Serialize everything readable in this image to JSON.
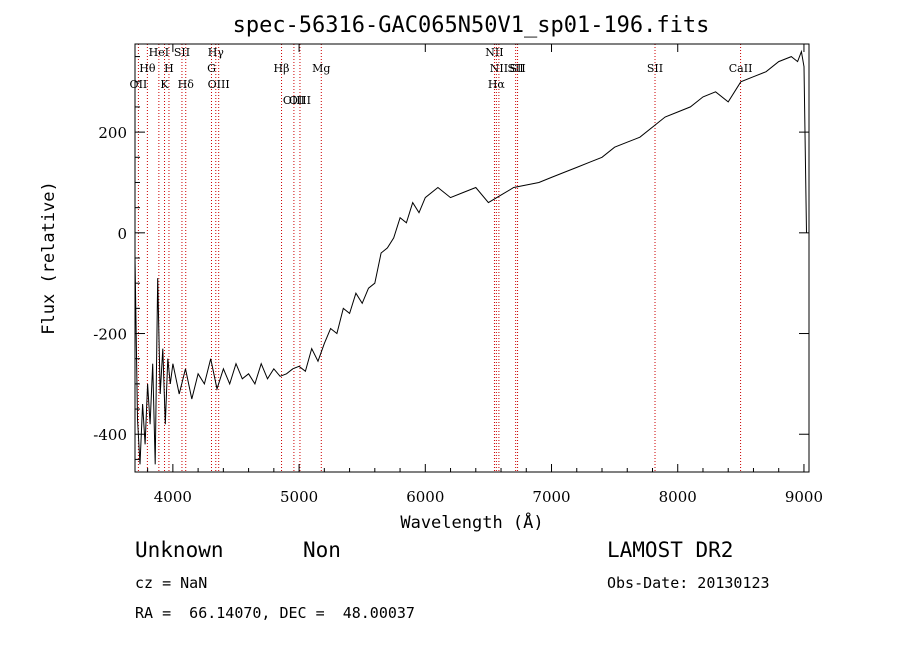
{
  "chart_data": {
    "type": "line",
    "title": "spec-56316-GAC065N50V1_sp01-196.fits",
    "xlabel": "Wavelength (Å)",
    "ylabel": "Flux (relative)",
    "xlim": [
      3700,
      9040
    ],
    "ylim": [
      -475,
      375
    ],
    "x_ticks": [
      4000,
      5000,
      6000,
      7000,
      8000,
      9000
    ],
    "y_ticks": [
      -400,
      -200,
      0,
      200
    ],
    "grid": false,
    "series": [
      {
        "x": [
          3700,
          3720,
          3740,
          3760,
          3780,
          3800,
          3820,
          3840,
          3860,
          3880,
          3900,
          3920,
          3940,
          3960,
          3980,
          4000,
          4050,
          4100,
          4150,
          4200,
          4250,
          4300,
          4350,
          4400,
          4450,
          4500,
          4550,
          4600,
          4650,
          4700,
          4750,
          4800,
          4850,
          4900,
          4950,
          5000,
          5050,
          5100,
          5150,
          5200,
          5250,
          5300,
          5350,
          5400,
          5450,
          5500,
          5550,
          5600,
          5650,
          5700,
          5750,
          5800,
          5850,
          5900,
          5950,
          6000,
          6100,
          6200,
          6300,
          6400,
          6500,
          6600,
          6700,
          6800,
          6900,
          7000,
          7100,
          7200,
          7300,
          7400,
          7500,
          7600,
          7700,
          7800,
          7900,
          8000,
          8100,
          8200,
          8300,
          8400,
          8500,
          8600,
          8700,
          8800,
          8900,
          8950,
          8980,
          9000,
          9020
        ],
        "y": [
          -50,
          -370,
          -460,
          -340,
          -420,
          -300,
          -380,
          -260,
          -460,
          -90,
          -320,
          -230,
          -380,
          -250,
          -300,
          -260,
          -320,
          -270,
          -330,
          -280,
          -300,
          -250,
          -310,
          -270,
          -300,
          -260,
          -290,
          -280,
          -300,
          -260,
          -290,
          -270,
          -285,
          -280,
          -270,
          -265,
          -275,
          -230,
          -255,
          -220,
          -190,
          -200,
          -150,
          -160,
          -120,
          -140,
          -110,
          -100,
          -40,
          -30,
          -10,
          30,
          20,
          60,
          40,
          70,
          90,
          70,
          80,
          90,
          60,
          75,
          90,
          95,
          100,
          110,
          120,
          130,
          140,
          150,
          170,
          180,
          190,
          210,
          230,
          240,
          250,
          270,
          280,
          260,
          300,
          310,
          320,
          340,
          350,
          340,
          360,
          330,
          0
        ]
      }
    ],
    "line_annotations": [
      {
        "label": "OII",
        "wl": 3727
      },
      {
        "label": "Hθ",
        "wl": 3798
      },
      {
        "label": "HeI",
        "wl": 3889
      },
      {
        "label": "K",
        "wl": 3934
      },
      {
        "label": "H",
        "wl": 3969
      },
      {
        "label": "SII",
        "wl": 4072
      },
      {
        "label": "Hδ",
        "wl": 4102
      },
      {
        "label": "Hγ",
        "wl": 4340
      },
      {
        "label": "G",
        "wl": 4306
      },
      {
        "label": "OIII",
        "wl": 4363
      },
      {
        "label": "Hβ",
        "wl": 4861
      },
      {
        "label": "OIII",
        "wl": 4959
      },
      {
        "label": "OIII",
        "wl": 5007
      },
      {
        "label": "Mg",
        "wl": 5176
      },
      {
        "label": "NII",
        "wl": 6548
      },
      {
        "label": "NII",
        "wl": 6583
      },
      {
        "label": "Hα",
        "wl": 6563
      },
      {
        "label": "SII",
        "wl": 6716
      },
      {
        "label": "SII",
        "wl": 6731
      },
      {
        "label": "SII",
        "wl": 7820
      },
      {
        "label": "CaII",
        "wl": 8498
      }
    ]
  },
  "info": {
    "classification": "Unknown",
    "subclass": "Non",
    "survey": "LAMOST DR2",
    "cz": "cz = NaN",
    "obs_date": "Obs-Date: 20130123",
    "coords": "RA =  66.14070, DEC =  48.00037"
  },
  "colors": {
    "line": "#000000",
    "annotation": "#cc0000",
    "background": "#ffffff"
  }
}
